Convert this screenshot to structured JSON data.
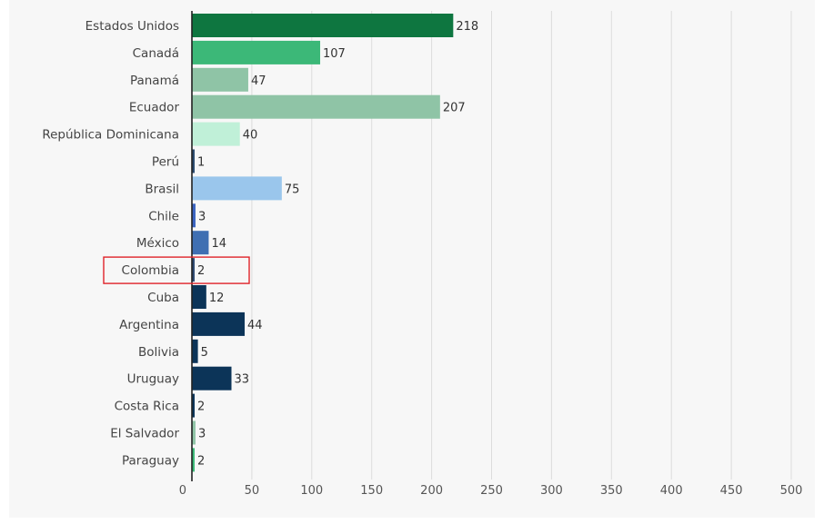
{
  "chart_data": {
    "type": "bar",
    "orientation": "horizontal",
    "title": "",
    "xlabel": "",
    "ylabel": "",
    "xlim": [
      0,
      500
    ],
    "ticks": [
      "0",
      "50",
      "100",
      "150",
      "200",
      "250",
      "300",
      "350",
      "400",
      "450",
      "500"
    ],
    "tick_values": [
      0,
      50,
      100,
      150,
      200,
      250,
      300,
      350,
      400,
      450,
      500
    ],
    "grid": "vertical",
    "categories": [
      "Estados Unidos",
      "Canadá",
      "Panamá",
      "Ecuador",
      "República Dominicana",
      "Perú",
      "Brasil",
      "Chile",
      "México",
      "Colombia",
      "Cuba",
      "Argentina",
      "Bolivia",
      "Uruguay",
      "Costa Rica",
      "El Salvador",
      "Paraguay"
    ],
    "values": [
      218,
      107,
      47,
      207,
      40,
      1,
      75,
      3,
      14,
      2,
      12,
      44,
      5,
      33,
      2,
      3,
      2
    ],
    "value_labels": [
      "218",
      "107",
      "47",
      "207",
      "40",
      "1",
      "75",
      "3",
      "14",
      "2",
      "12",
      "44",
      "5",
      "33",
      "2",
      "3",
      "2"
    ],
    "colors": [
      "#0e7640",
      "#3cb878",
      "#8fc4a6",
      "#8fc4a6",
      "#c0f0d8",
      "#2b4a6e",
      "#9ac6ec",
      "#3a63c0",
      "#3f6fb2",
      "#2f4a72",
      "#0c3458",
      "#0c3458",
      "#0c3458",
      "#0c3458",
      "#0c3458",
      "#8fc4a6",
      "#3cb878"
    ],
    "highlighted_category": "Colombia",
    "highlight_color": "#e0242a"
  }
}
